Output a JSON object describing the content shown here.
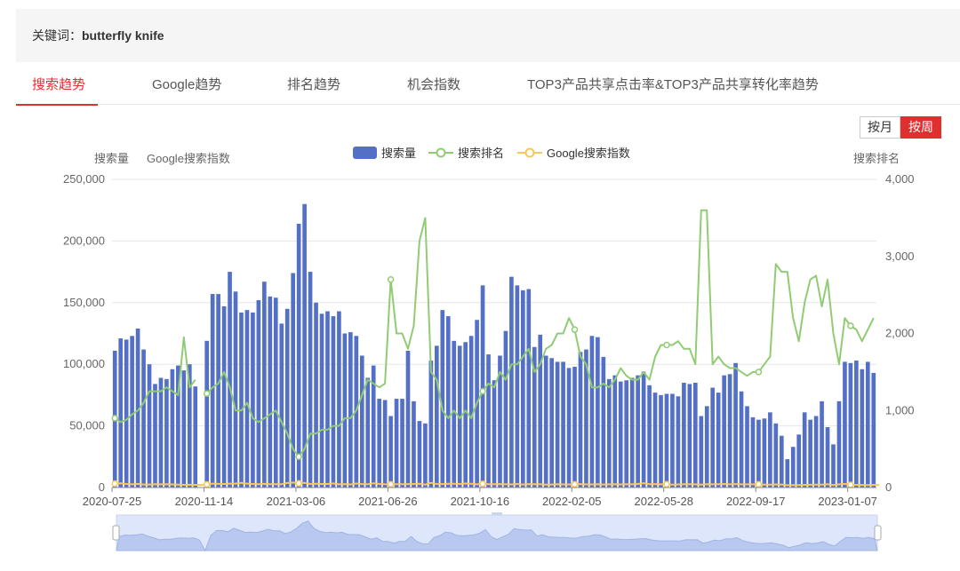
{
  "keyword": {
    "label": "关键词：",
    "value": "butterfly knife"
  },
  "tabs": [
    {
      "label": "搜索趋势",
      "active": true
    },
    {
      "label": "Google趋势",
      "active": false
    },
    {
      "label": "排名趋势",
      "active": false
    },
    {
      "label": "机会指数",
      "active": false
    },
    {
      "label": "TOP3产品共享点击率&TOP3产品共享转化率趋势",
      "active": false
    }
  ],
  "period_toggle": {
    "month": "按月",
    "week": "按周",
    "selected": "week"
  },
  "colors": {
    "accent": "#e02f2f",
    "bar": "#5470c6",
    "rank": "#91cc75",
    "google": "#fac858"
  },
  "chart_data": {
    "type": "bar",
    "left_axis_labels": [
      "搜索量",
      "Google搜索指数"
    ],
    "right_axis_label": "搜索排名",
    "legend": [
      "搜索量",
      "搜索排名",
      "Google搜索指数"
    ],
    "legend_position": "top-center",
    "y_left": {
      "min": 0,
      "max": 250000,
      "ticks": [
        "0",
        "50,000",
        "100,000",
        "150,000",
        "200,000",
        "250,000"
      ]
    },
    "y_right": {
      "min": 0,
      "max": 4000,
      "ticks": [
        "0",
        "1,000",
        "2,000",
        "3,000",
        "4,000"
      ]
    },
    "x_tick_labels": [
      "2020-07-25",
      "2020-11-14",
      "2021-03-06",
      "2021-06-26",
      "2021-10-16",
      "2022-02-05",
      "2022-05-28",
      "2022-09-17",
      "2023-01-07"
    ],
    "x_tick_indices": [
      0,
      16,
      32,
      48,
      64,
      80,
      96,
      112,
      128
    ],
    "grid": true,
    "series": [
      {
        "name": "搜索量",
        "type": "bar",
        "values": [
          111000,
          121000,
          120000,
          123000,
          129000,
          112000,
          100000,
          84000,
          89000,
          88000,
          96000,
          99000,
          95000,
          100000,
          82000,
          0,
          119000,
          157000,
          157000,
          147000,
          175000,
          159000,
          142000,
          144000,
          142000,
          152000,
          167000,
          155000,
          154000,
          133000,
          145000,
          174000,
          214000,
          230000,
          175000,
          150000,
          141000,
          143000,
          139000,
          143000,
          125000,
          126000,
          123000,
          107000,
          89000,
          99000,
          72000,
          71000,
          58000,
          72000,
          72000,
          111000,
          70000,
          54000,
          52000,
          103000,
          115000,
          144000,
          139000,
          119000,
          115000,
          118000,
          123000,
          136000,
          164000,
          108000,
          87000,
          107000,
          127000,
          171000,
          164000,
          160000,
          161000,
          114000,
          124000,
          107000,
          105000,
          102000,
          102000,
          97000,
          98000,
          110000,
          112000,
          123000,
          122000,
          106000,
          88000,
          91000,
          86000,
          87000,
          89000,
          91000,
          94000,
          83000,
          77000,
          75000,
          76000,
          76000,
          74000,
          85000,
          84000,
          85000,
          58000,
          66000,
          81000,
          77000,
          91000,
          92000,
          101000,
          78000,
          66000,
          57000,
          55000,
          56000,
          61000,
          52000,
          42000,
          23000,
          33000,
          43000,
          61000,
          55000,
          58000,
          70000,
          49000,
          35000,
          70000,
          102000,
          101000,
          103000,
          96000,
          102000,
          93000
        ]
      },
      {
        "name": "搜索排名",
        "type": "line",
        "values": [
          900,
          850,
          880,
          950,
          1000,
          1100,
          1250,
          1250,
          1250,
          1300,
          1250,
          1200,
          1950,
          1300,
          1400,
          null,
          1220,
          1300,
          1350,
          1500,
          1300,
          1000,
          1000,
          1100,
          900,
          850,
          900,
          950,
          1000,
          850,
          700,
          500,
          400,
          500,
          700,
          700,
          750,
          750,
          800,
          800,
          900,
          900,
          1000,
          1200,
          1400,
          1350,
          1300,
          1350,
          2700,
          2000,
          2000,
          1800,
          2100,
          3200,
          3500,
          1500,
          1400,
          1000,
          900,
          1000,
          900,
          1000,
          900,
          1100,
          1250,
          1350,
          1300,
          1500,
          1400,
          1600,
          1600,
          1700,
          1800,
          1500,
          1600,
          1800,
          1850,
          2000,
          2000,
          2200,
          2050,
          1700,
          1600,
          1300,
          1300,
          1350,
          1300,
          1400,
          1550,
          1450,
          1400,
          1400,
          1500,
          1400,
          1700,
          1850,
          1850,
          1850,
          1900,
          1800,
          1800,
          1600,
          3600,
          3600,
          1600,
          1700,
          1600,
          1550,
          1550,
          1500,
          1450,
          1500,
          1500,
          1600,
          1700,
          2900,
          2800,
          2800,
          2200,
          1900,
          2400,
          2700,
          2750,
          2350,
          2700,
          2000,
          1600,
          2200,
          2100,
          2050,
          1900,
          2050,
          2200
        ]
      },
      {
        "name": "Google搜索指数",
        "type": "line",
        "values": [
          3140,
          3450,
          2890,
          2560,
          2950,
          2450,
          2470,
          2700,
          2600,
          2670,
          2540,
          2330,
          2190,
          2220,
          2160,
          2160,
          2540,
          3150,
          2950,
          2870,
          3200,
          3160,
          3730,
          3140,
          2880,
          2690,
          2980,
          2670,
          2740,
          2740,
          3700,
          4000,
          3400,
          3720,
          2910,
          3040,
          2880,
          2850,
          3280,
          2620,
          2790,
          2550,
          3220,
          2830,
          2700,
          3430,
          2850,
          2690,
          2610,
          2640,
          2730,
          2840,
          2900,
          3050,
          2400,
          3810,
          2850,
          2820,
          3050,
          3040,
          2900,
          3230,
          3070,
          2560,
          3010,
          2700,
          2700,
          2840,
          2640,
          2500,
          2850,
          2430,
          2820,
          2680,
          2700,
          2320,
          2430,
          2690,
          2500,
          2510,
          2580,
          2780,
          2580,
          2500,
          2640,
          2470,
          2560,
          2640,
          2550,
          2670,
          2600,
          2890,
          3530,
          2740,
          2830,
          2570,
          2680,
          2320,
          2500,
          2630,
          2690,
          2590,
          2290,
          2700,
          2590,
          2720,
          2890,
          2570,
          2810,
          2620,
          2560,
          2610,
          2570,
          2340,
          2360,
          2550,
          2480,
          1880,
          2010,
          1990,
          2100,
          2220,
          2350,
          2380,
          2710,
          2050,
          2600,
          2960,
          2160,
          2150,
          2120,
          2030,
          2140,
          1960
        ]
      }
    ]
  }
}
